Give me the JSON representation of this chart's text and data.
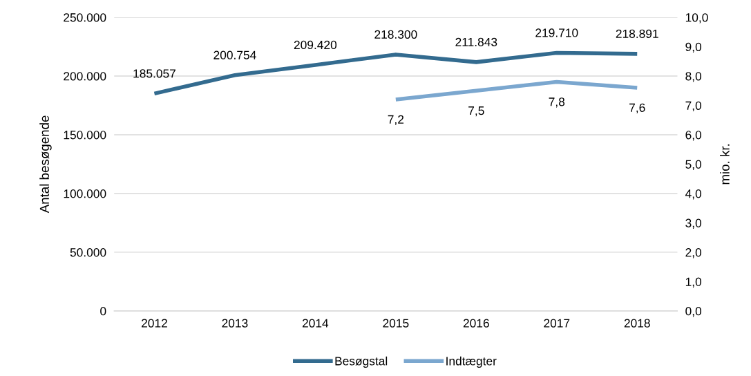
{
  "chart_data": {
    "type": "line",
    "ylabel": "Antal besøgende",
    "y2label": "mio. kr.",
    "categories": [
      "2012",
      "2013",
      "2014",
      "2015",
      "2016",
      "2017",
      "2018"
    ],
    "series": [
      {
        "name": "Besøgstal",
        "color": "#336b8f",
        "values": [
          185057,
          200754,
          209420,
          218300,
          211843,
          219710,
          218891
        ],
        "value_labels": [
          "185.057",
          "200.754",
          "209.420",
          "218.300",
          "211.843",
          "219.710",
          "218.891"
        ]
      },
      {
        "name": "Indtægter",
        "color": "#7ba7cf",
        "axis": "y2",
        "values": [
          null,
          null,
          null,
          7.2,
          7.5,
          7.8,
          7.6
        ],
        "value_labels": [
          null,
          null,
          null,
          "7,2",
          "7,5",
          "7,8",
          "7,6"
        ]
      }
    ],
    "ylim": [
      0,
      250000
    ],
    "yticks": [
      {
        "value": 0,
        "label": "0"
      },
      {
        "value": 50000,
        "label": "50.000"
      },
      {
        "value": 100000,
        "label": "100.000"
      },
      {
        "value": 150000,
        "label": "150.000"
      },
      {
        "value": 200000,
        "label": "200.000"
      },
      {
        "value": 250000,
        "label": "250.000"
      }
    ],
    "y2lim": [
      0,
      10
    ],
    "y2ticks": [
      {
        "value": 0,
        "label": "0,0"
      },
      {
        "value": 1,
        "label": "1,0"
      },
      {
        "value": 2,
        "label": "2,0"
      },
      {
        "value": 3,
        "label": "3,0"
      },
      {
        "value": 4,
        "label": "4,0"
      },
      {
        "value": 5,
        "label": "5,0"
      },
      {
        "value": 6,
        "label": "6,0"
      },
      {
        "value": 7,
        "label": "7,0"
      },
      {
        "value": 8,
        "label": "8,0"
      },
      {
        "value": 9,
        "label": "9,0"
      },
      {
        "value": 10,
        "label": "10,0"
      }
    ],
    "grid": "y",
    "legend": "bottom",
    "marker": "none",
    "line_style": "solid"
  }
}
